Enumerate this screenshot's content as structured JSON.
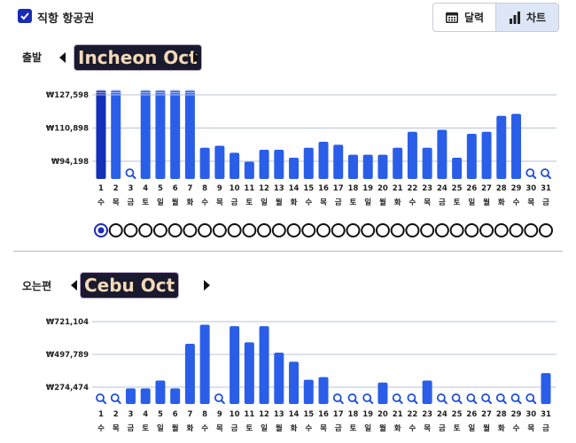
{
  "filter": {
    "direct_only_label": "직항 항공권",
    "direct_only_checked": true
  },
  "view_toggle": {
    "calendar_label": "달력",
    "chart_label": "차트",
    "active": "chart",
    "calendar_icon": "calendar-icon",
    "chart_icon": "bar-chart-icon"
  },
  "outbound": {
    "label": "출발",
    "route_chip": "Incheon Oct",
    "selected_day": 1,
    "chart_data": {
      "type": "bar",
      "y_ticks": [
        "₩127,598",
        "₩110,898",
        "₩94,198"
      ],
      "y_tick_values": [
        127598,
        110898,
        94198
      ],
      "categories": [
        "1",
        "2",
        "3",
        "4",
        "5",
        "6",
        "7",
        "8",
        "9",
        "10",
        "11",
        "12",
        "13",
        "14",
        "15",
        "16",
        "17",
        "18",
        "19",
        "20",
        "21",
        "22",
        "23",
        "24",
        "25",
        "26",
        "27",
        "28",
        "29",
        "30",
        "31"
      ],
      "weekdays": [
        "수",
        "목",
        "금",
        "토",
        "일",
        "월",
        "화",
        "수",
        "목",
        "금",
        "토",
        "일",
        "월",
        "화",
        "수",
        "목",
        "금",
        "토",
        "일",
        "월",
        "화",
        "수",
        "목",
        "금",
        "토",
        "일",
        "월",
        "화",
        "수",
        "목",
        "금"
      ],
      "values": [
        130000,
        130000,
        null,
        130000,
        130000,
        130000,
        130000,
        101000,
        102000,
        98500,
        94000,
        100000,
        100000,
        96000,
        101000,
        104000,
        102500,
        97500,
        97500,
        97500,
        101000,
        109000,
        101000,
        110000,
        96000,
        108000,
        109000,
        117000,
        118000,
        null,
        null
      ],
      "capped_above_chart": [
        1,
        2,
        4,
        5,
        6,
        7
      ],
      "no_data_icon": "search-icon",
      "selected_bar": 1
    }
  },
  "inbound": {
    "label": "오는편",
    "route_chip": "Cebu Oct",
    "chart_data": {
      "type": "bar",
      "y_ticks": [
        "₩721,104",
        "₩497,789",
        "₩274,474"
      ],
      "y_tick_values": [
        721104,
        497789,
        274474
      ],
      "categories": [
        "1",
        "2",
        "3",
        "4",
        "5",
        "6",
        "7",
        "8",
        "9",
        "10",
        "11",
        "12",
        "13",
        "14",
        "15",
        "16",
        "17",
        "18",
        "19",
        "20",
        "21",
        "22",
        "23",
        "24",
        "25",
        "26",
        "27",
        "28",
        "29",
        "30",
        "31"
      ],
      "weekdays": [
        "수",
        "목",
        "금",
        "토",
        "일",
        "월",
        "화",
        "수",
        "목",
        "금",
        "토",
        "일",
        "월",
        "화",
        "수",
        "목",
        "금",
        "토",
        "일",
        "월",
        "화",
        "수",
        "목",
        "금",
        "토",
        "일",
        "월",
        "화",
        "수",
        "목",
        "금"
      ],
      "values": [
        null,
        null,
        266000,
        266000,
        320000,
        266000,
        570000,
        700000,
        null,
        690000,
        580000,
        690000,
        510000,
        448000,
        325000,
        343000,
        null,
        null,
        null,
        306000,
        null,
        null,
        320000,
        null,
        null,
        null,
        null,
        null,
        null,
        null,
        370000
      ],
      "no_data_icon": "search-icon"
    }
  }
}
